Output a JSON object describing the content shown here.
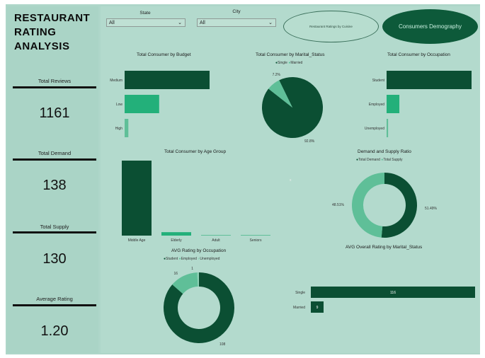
{
  "header": {
    "title_lines": [
      "RESTAURANT",
      "RATING",
      "ANALYSIS"
    ]
  },
  "kpis": [
    {
      "label": "Total Reviews",
      "value": "1161"
    },
    {
      "label": "Total Demand",
      "value": "138"
    },
    {
      "label": "Total Supply",
      "value": "130"
    },
    {
      "label": "Average Rating",
      "value": "1.20"
    }
  ],
  "slicers": {
    "state": {
      "label": "State",
      "value": "All"
    },
    "city": {
      "label": "City",
      "value": "All"
    }
  },
  "nav": {
    "ratings_button": "Restaurant Ratings by Cuisine",
    "consumers_button": "Consumers Demography"
  },
  "colors": {
    "dark": "#0b4f33",
    "mid": "#23b07a",
    "light": "#5fbf98",
    "pale": "#8fd1b6"
  },
  "center_marker": "x",
  "chart_data": [
    {
      "type": "bar",
      "orientation": "horizontal",
      "title": "Total Consumer by Budget",
      "categories": [
        "Medium",
        "Low",
        "High"
      ],
      "values": [
        91,
        37,
        4
      ]
    },
    {
      "type": "pie",
      "title": "Total Consumer by Marital_Status",
      "legend": [
        "Single",
        "Married"
      ],
      "values": [
        92.8,
        7.2
      ],
      "labels": [
        "92.8%",
        "7.2%"
      ]
    },
    {
      "type": "bar",
      "orientation": "horizontal",
      "title": "Total Consumer by Occupation",
      "categories": [
        "Student",
        "Employed",
        "Unemployed"
      ],
      "values": [
        113,
        17,
        2
      ]
    },
    {
      "type": "bar",
      "orientation": "vertical",
      "title": "Total Consumer by Age Group",
      "categories": [
        "Middle Age",
        "Elderly",
        "Adult",
        "Seniors"
      ],
      "values": [
        109,
        5,
        1,
        1
      ]
    },
    {
      "type": "donut",
      "title": "Demand and Supply Ratio",
      "legend": [
        "Total Demand",
        "Total Supply"
      ],
      "values": [
        51.49,
        48.51
      ],
      "labels": [
        "51.49%",
        "48.51%"
      ]
    },
    {
      "type": "donut",
      "title": "AVG Rating by Occupation",
      "legend": [
        "Student",
        "Employed",
        "Unemployed"
      ],
      "values": [
        108,
        16,
        1
      ],
      "labels": [
        "108",
        "16",
        "1"
      ]
    },
    {
      "type": "bar",
      "orientation": "horizontal",
      "title": "AVG Overall Rating by Marital_Status",
      "categories": [
        "Single",
        "Married"
      ],
      "values": [
        116,
        9
      ],
      "labels": [
        "116",
        "9"
      ]
    }
  ]
}
